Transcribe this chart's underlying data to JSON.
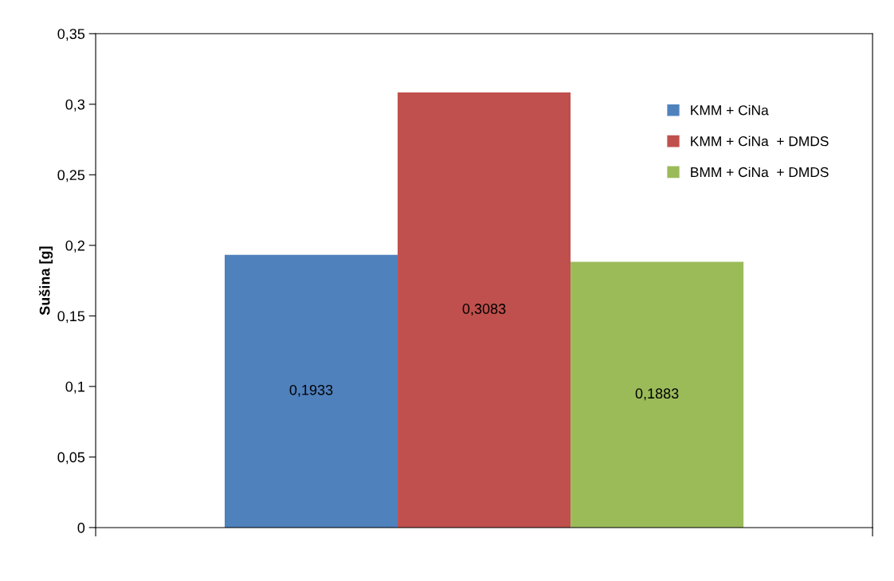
{
  "chart_data": {
    "type": "bar",
    "ylabel": "Sušina [g]",
    "categories": [
      null
    ],
    "series": [
      {
        "name": "KMM + CiNa",
        "color": "#4f81bd",
        "values": [
          0.1933
        ],
        "value_labels": [
          "0,1933"
        ]
      },
      {
        "name": "KMM + CiNa  + DMDS",
        "color": "#c0504d",
        "values": [
          0.3083
        ],
        "value_labels": [
          "0,3083"
        ]
      },
      {
        "name": "BMM + CiNa  + DMDS",
        "color": "#9bbb59",
        "values": [
          0.1883
        ],
        "value_labels": [
          "0,1883"
        ]
      }
    ],
    "ylim": [
      0,
      0.35
    ],
    "yticks": [
      0,
      {
        "value": 0.05,
        "label": "0,05"
      },
      {
        "value": 0.1,
        "label": "0,1"
      },
      {
        "value": 0.15,
        "label": "0,15"
      },
      {
        "value": 0.2,
        "label": "0,2"
      },
      {
        "value": 0.25,
        "label": "0,25"
      },
      {
        "value": 0.3,
        "label": "0,3"
      },
      {
        "value": 0.35,
        "label": "0,35"
      }
    ],
    "grid": false,
    "legend": "right"
  }
}
